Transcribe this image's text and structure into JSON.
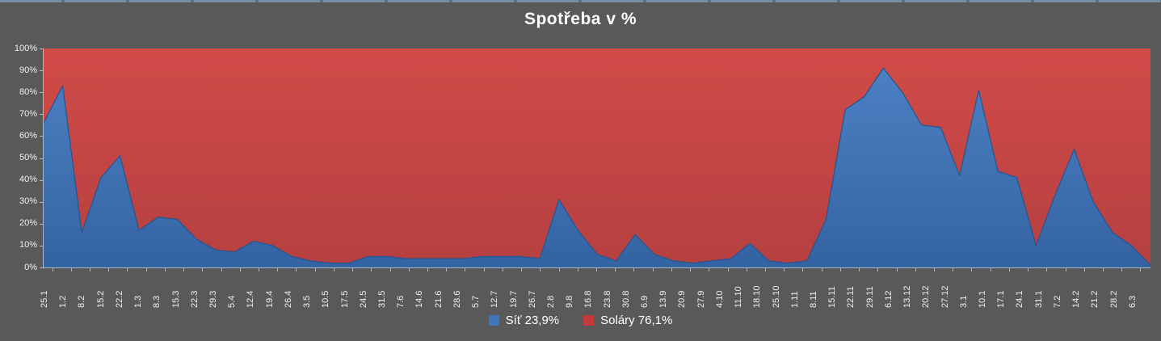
{
  "chart": {
    "title": "Spotřeba v %",
    "legend": [
      {
        "label": "Síť 23,9%",
        "color": "#3e74b8"
      },
      {
        "label": "Soláry 76,1%",
        "color": "#c23b38"
      }
    ]
  },
  "chart_data": {
    "type": "area",
    "subtype": "stacked-100-percent",
    "title": "Spotřeba v %",
    "categories": [
      "25.1",
      "1.2",
      "8.2",
      "15.2",
      "22.2",
      "1.3",
      "8.3",
      "15.3",
      "22.3",
      "29.3",
      "5.4",
      "12.4",
      "19.4",
      "26.4",
      "3.5",
      "10.5",
      "17.5",
      "24.5",
      "31.5",
      "7.6",
      "14.6",
      "21.6",
      "28.6",
      "5.7",
      "12.7",
      "19.7",
      "26.7",
      "2.8",
      "9.8",
      "16.8",
      "23.8",
      "30.8",
      "6.9",
      "13.9",
      "20.9",
      "27.9",
      "4.10",
      "11.10",
      "18.10",
      "25.10",
      "1.11",
      "8.11",
      "15.11",
      "22.11",
      "29.11",
      "6.12",
      "13.12",
      "20.12",
      "27.12",
      "3.1",
      "10.1",
      "17.1",
      "24.1",
      "31.1",
      "7.2",
      "14.2",
      "21.2",
      "28.2",
      "6.3"
    ],
    "series": [
      {
        "name": "Síť 23,9%",
        "color_top": "#4c80c2",
        "color_bottom": "#3463a3",
        "edge_color": "#2a5590",
        "values": [
          66,
          83,
          16,
          41,
          51,
          17,
          23,
          22,
          13,
          8,
          7,
          12,
          10,
          5,
          3,
          2,
          2,
          5,
          5,
          4,
          4,
          4,
          4,
          5,
          5,
          5,
          4,
          31,
          17,
          6,
          3,
          15,
          6,
          3,
          2,
          3,
          4,
          11,
          3,
          2,
          3,
          22,
          72,
          78,
          91,
          80,
          65,
          64,
          42,
          81,
          44,
          41,
          10,
          33,
          54,
          30,
          16,
          10,
          1
        ]
      },
      {
        "name": "Soláry 76,1%",
        "color_top": "#d14b48",
        "color_bottom": "#b54040",
        "values": [
          34,
          17,
          84,
          59,
          49,
          83,
          77,
          78,
          87,
          92,
          93,
          88,
          90,
          95,
          97,
          98,
          98,
          95,
          95,
          96,
          96,
          96,
          96,
          95,
          95,
          95,
          96,
          69,
          83,
          94,
          97,
          85,
          94,
          97,
          98,
          97,
          96,
          89,
          97,
          98,
          97,
          78,
          28,
          22,
          9,
          20,
          35,
          36,
          58,
          19,
          56,
          59,
          90,
          67,
          46,
          70,
          84,
          90,
          99
        ]
      }
    ],
    "xlabel": "",
    "ylabel": "",
    "ylim": [
      0,
      100
    ],
    "yticks": [
      "0%",
      "10%",
      "20%",
      "30%",
      "40%",
      "50%",
      "60%",
      "70%",
      "80%",
      "90%",
      "100%"
    ],
    "grid": false,
    "legend_position": "bottom",
    "x_tick_label_rotation_deg": 90
  }
}
